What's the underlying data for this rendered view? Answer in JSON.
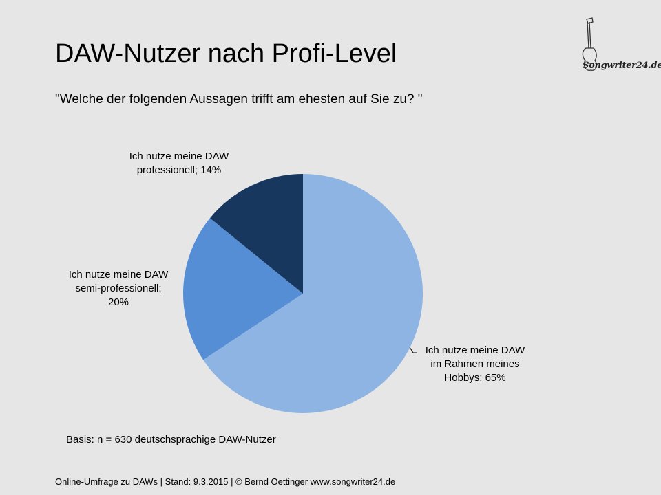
{
  "title": "DAW-Nutzer nach Profi-Level",
  "subtitle": "\"Welche der folgenden Aussagen trifft am ehesten auf Sie zu? \"",
  "logo_text": "Songwriter24.de",
  "basis": "Basis: n = 630 deutschsprachige DAW-Nutzer",
  "footer": "Online-Umfrage zu DAWs |  Stand: 9.3.2015 | © Bernd Oettinger www.songwriter24.de",
  "labels": {
    "hobby": [
      "Ich nutze meine DAW",
      "im Rahmen meines",
      "Hobbys; 65%"
    ],
    "semi": [
      "Ich nutze meine DAW",
      "semi-professionell;",
      "20%"
    ],
    "prof": [
      "Ich nutze meine DAW",
      "professionell; 14%"
    ]
  },
  "chart_data": {
    "type": "pie",
    "title": "DAW-Nutzer nach Profi-Level",
    "slices": [
      {
        "label": "Ich nutze meine DAW im Rahmen meines Hobbys",
        "value": 65,
        "color": "#8eb4e3"
      },
      {
        "label": "Ich nutze meine DAW semi-professionell",
        "value": 20,
        "color": "#558ed5"
      },
      {
        "label": "Ich nutze meine DAW professionell",
        "value": 14,
        "color": "#17375e"
      }
    ],
    "legend": "none"
  }
}
